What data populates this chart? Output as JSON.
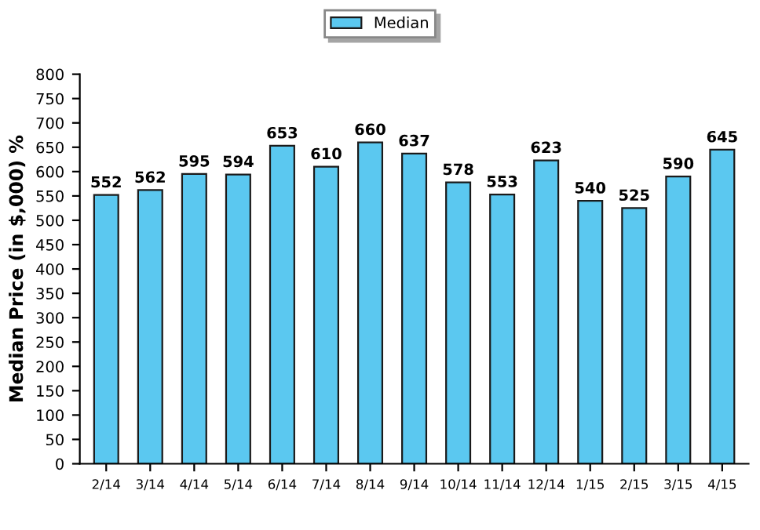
{
  "chart_data": {
    "type": "bar",
    "ylabel": "Median Price (in $,000) %",
    "categories": [
      "2/14",
      "3/14",
      "4/14",
      "5/14",
      "6/14",
      "7/14",
      "8/14",
      "9/14",
      "10/14",
      "11/14",
      "12/14",
      "1/15",
      "2/15",
      "3/15",
      "4/15"
    ],
    "series": [
      {
        "name": "Median",
        "color": "#5bc8f0",
        "values": [
          552,
          562,
          595,
          594,
          653,
          610,
          660,
          637,
          578,
          553,
          623,
          540,
          525,
          590,
          645
        ]
      }
    ],
    "ylim": [
      0,
      800
    ],
    "yticks": [
      0,
      50,
      100,
      150,
      200,
      250,
      300,
      350,
      400,
      450,
      500,
      550,
      600,
      650,
      700,
      750,
      800
    ],
    "data_labels": true,
    "legend": "top",
    "grid": false
  }
}
